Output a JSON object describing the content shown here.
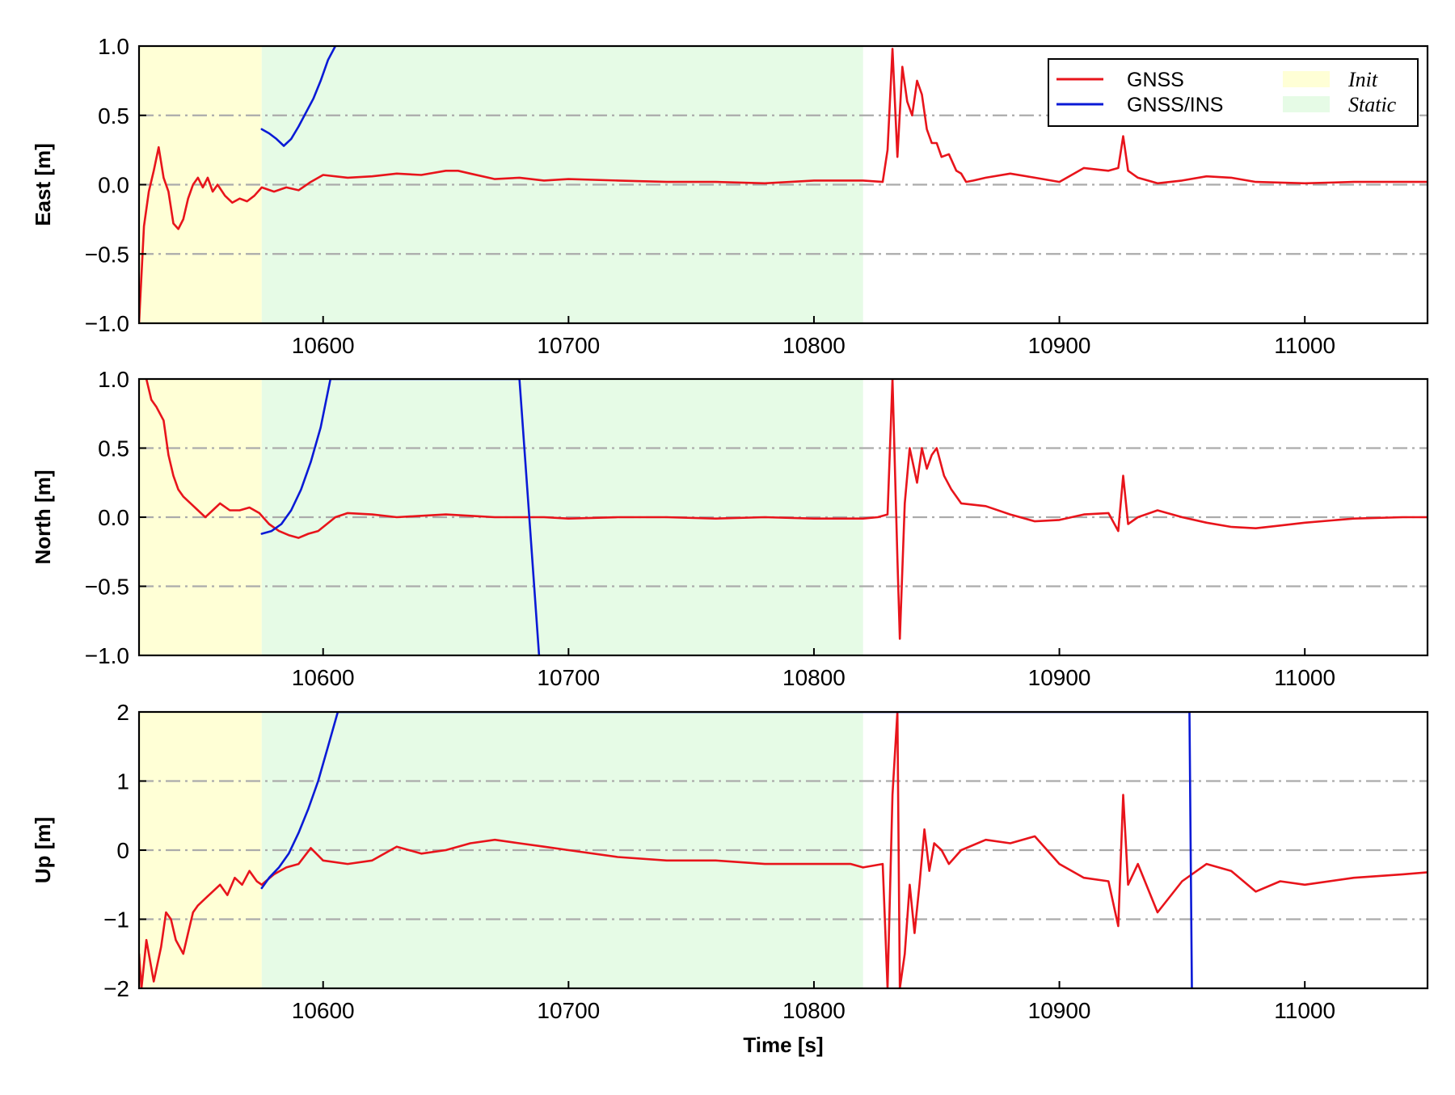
{
  "chart_data": [
    {
      "type": "line",
      "ylabel": "East [m]",
      "xlabel": "",
      "xlim": [
        10525,
        11050
      ],
      "ylim": [
        -1.0,
        1.0
      ],
      "x_ticks": [
        10600,
        10700,
        10800,
        10900,
        11000
      ],
      "x_tick_labels": [
        "10600",
        "10700",
        "10800",
        "10900",
        "11000"
      ],
      "y_ticks": [
        1.0,
        0.5,
        0.0,
        -0.5,
        -1.0
      ],
      "y_tick_labels": [
        "1.0",
        "0.5",
        "0.0",
        "−0.5",
        "−1.0"
      ],
      "gridlines": [
        0.5,
        0.0,
        -0.5
      ],
      "grid": "dash-dot horizontal",
      "shaded_regions": [
        {
          "label": "Init",
          "x": [
            10525,
            10575
          ],
          "color": "#ffffd6"
        },
        {
          "label": "Static",
          "x": [
            10575,
            10820
          ],
          "color": "#e6fbe6"
        }
      ],
      "series": [
        {
          "name": "GNSS",
          "color": "#e8141b",
          "x": [
            10525,
            10527,
            10529,
            10531,
            10533,
            10535,
            10537,
            10539,
            10541,
            10543,
            10545,
            10547,
            10549,
            10551,
            10553,
            10555,
            10557,
            10560,
            10563,
            10566,
            10569,
            10572,
            10575,
            10580,
            10585,
            10590,
            10595,
            10600,
            10610,
            10620,
            10630,
            10640,
            10650,
            10655,
            10660,
            10670,
            10680,
            10690,
            10700,
            10720,
            10740,
            10760,
            10780,
            10800,
            10820,
            10828,
            10830,
            10832,
            10834,
            10836,
            10838,
            10840,
            10842,
            10844,
            10846,
            10848,
            10850,
            10852,
            10855,
            10858,
            10860,
            10862,
            10865,
            10870,
            10880,
            10890,
            10900,
            10910,
            10920,
            10924,
            10926,
            10928,
            10932,
            10940,
            10950,
            10960,
            10970,
            10980,
            11000,
            11020,
            11040,
            11050
          ],
          "y": [
            -1.0,
            -0.3,
            -0.05,
            0.1,
            0.27,
            0.05,
            -0.05,
            -0.28,
            -0.32,
            -0.25,
            -0.1,
            0.0,
            0.05,
            -0.02,
            0.05,
            -0.05,
            0.0,
            -0.08,
            -0.13,
            -0.1,
            -0.12,
            -0.08,
            -0.02,
            -0.05,
            -0.02,
            -0.04,
            0.02,
            0.07,
            0.05,
            0.06,
            0.08,
            0.07,
            0.1,
            0.1,
            0.08,
            0.04,
            0.05,
            0.03,
            0.04,
            0.03,
            0.02,
            0.02,
            0.01,
            0.03,
            0.03,
            0.02,
            0.25,
            0.98,
            0.2,
            0.85,
            0.6,
            0.5,
            0.75,
            0.65,
            0.4,
            0.3,
            0.3,
            0.2,
            0.22,
            0.1,
            0.08,
            0.02,
            0.03,
            0.05,
            0.08,
            0.05,
            0.02,
            0.12,
            0.1,
            0.12,
            0.35,
            0.1,
            0.05,
            0.01,
            0.03,
            0.06,
            0.05,
            0.02,
            0.01,
            0.02,
            0.02,
            0.02
          ]
        },
        {
          "name": "GNSS/INS",
          "color": "#0a1ad6",
          "x": [
            10575,
            10578,
            10581,
            10584,
            10587,
            10590,
            10593,
            10596,
            10599,
            10602,
            10605
          ],
          "y": [
            0.4,
            0.37,
            0.33,
            0.28,
            0.33,
            0.42,
            0.52,
            0.62,
            0.75,
            0.9,
            1.0
          ]
        }
      ]
    },
    {
      "type": "line",
      "ylabel": "North [m]",
      "xlabel": "",
      "xlim": [
        10525,
        11050
      ],
      "ylim": [
        -1.0,
        1.0
      ],
      "x_ticks": [
        10600,
        10700,
        10800,
        10900,
        11000
      ],
      "x_tick_labels": [
        "10600",
        "10700",
        "10800",
        "10900",
        "11000"
      ],
      "y_ticks": [
        1.0,
        0.5,
        0.0,
        -0.5,
        -1.0
      ],
      "y_tick_labels": [
        "1.0",
        "0.5",
        "0.0",
        "−0.5",
        "−1.0"
      ],
      "gridlines": [
        0.5,
        0.0,
        -0.5
      ],
      "grid": "dash-dot horizontal",
      "shaded_regions": [
        {
          "label": "Init",
          "x": [
            10525,
            10575
          ],
          "color": "#ffffd6"
        },
        {
          "label": "Static",
          "x": [
            10575,
            10820
          ],
          "color": "#e6fbe6"
        }
      ],
      "series": [
        {
          "name": "GNSS",
          "color": "#e8141b",
          "x": [
            10528,
            10530,
            10532,
            10535,
            10537,
            10539,
            10541,
            10543,
            10546,
            10549,
            10552,
            10555,
            10558,
            10562,
            10566,
            10570,
            10574,
            10578,
            10582,
            10586,
            10590,
            10594,
            10598,
            10605,
            10610,
            10620,
            10630,
            10640,
            10650,
            10660,
            10670,
            10680,
            10690,
            10700,
            10720,
            10740,
            10760,
            10780,
            10800,
            10820,
            10826,
            10830,
            10832,
            10834,
            10835,
            10837,
            10839,
            10842,
            10844,
            10846,
            10848,
            10850,
            10853,
            10856,
            10860,
            10870,
            10880,
            10890,
            10900,
            10910,
            10920,
            10924,
            10926,
            10928,
            10932,
            10940,
            10950,
            10960,
            10970,
            10980,
            10990,
            11000,
            11020,
            11040,
            11050
          ],
          "y": [
            1.0,
            0.85,
            0.8,
            0.7,
            0.45,
            0.3,
            0.2,
            0.15,
            0.1,
            0.05,
            0.0,
            0.05,
            0.1,
            0.05,
            0.05,
            0.07,
            0.03,
            -0.05,
            -0.1,
            -0.13,
            -0.15,
            -0.12,
            -0.1,
            0.0,
            0.03,
            0.02,
            0.0,
            0.01,
            0.02,
            0.01,
            0.0,
            0.0,
            0.0,
            -0.01,
            0.0,
            0.0,
            -0.01,
            0.0,
            -0.01,
            -0.01,
            0.0,
            0.02,
            1.0,
            -0.3,
            -0.88,
            0.1,
            0.5,
            0.25,
            0.5,
            0.35,
            0.45,
            0.5,
            0.3,
            0.2,
            0.1,
            0.08,
            0.02,
            -0.03,
            -0.02,
            0.02,
            0.03,
            -0.1,
            0.3,
            -0.05,
            0.0,
            0.05,
            0.0,
            -0.04,
            -0.07,
            -0.08,
            -0.06,
            -0.04,
            -0.01,
            0.0,
            0.0
          ]
        },
        {
          "name": "GNSS/INS",
          "color": "#0a1ad6",
          "x": [
            10575,
            10579,
            10583,
            10587,
            10591,
            10595,
            10599,
            10603,
            10680,
            10684,
            10688
          ],
          "y": [
            -0.12,
            -0.1,
            -0.05,
            0.05,
            0.2,
            0.4,
            0.65,
            1.0,
            1.0,
            0.0,
            -1.0
          ]
        }
      ]
    },
    {
      "type": "line",
      "ylabel": "Up [m]",
      "xlabel": "Time [s]",
      "xlim": [
        10525,
        11050
      ],
      "ylim": [
        -2,
        2
      ],
      "x_ticks": [
        10600,
        10700,
        10800,
        10900,
        11000
      ],
      "x_tick_labels": [
        "10600",
        "10700",
        "10800",
        "10900",
        "11000"
      ],
      "y_ticks": [
        2,
        1,
        0,
        -1,
        -2
      ],
      "y_tick_labels": [
        "2",
        "1",
        "0",
        "−1",
        "−2"
      ],
      "gridlines": [
        1,
        0,
        -1
      ],
      "grid": "dash-dot horizontal",
      "shaded_regions": [
        {
          "label": "Init",
          "x": [
            10525,
            10575
          ],
          "color": "#ffffd6"
        },
        {
          "label": "Static",
          "x": [
            10575,
            10820
          ],
          "color": "#e6fbe6"
        }
      ],
      "series": [
        {
          "name": "GNSS",
          "color": "#e8141b",
          "x": [
            10525,
            10526,
            10528,
            10531,
            10534,
            10536,
            10538,
            10540,
            10543,
            10545,
            10547,
            10549,
            10552,
            10555,
            10558,
            10561,
            10564,
            10567,
            10570,
            10573,
            10575,
            10580,
            10585,
            10590,
            10595,
            10600,
            10610,
            10620,
            10630,
            10640,
            10650,
            10660,
            10670,
            10680,
            10690,
            10700,
            10720,
            10740,
            10760,
            10780,
            10800,
            10815,
            10820,
            10828,
            10830,
            10832,
            10834,
            10835,
            10837,
            10839,
            10841,
            10843,
            10845,
            10847,
            10849,
            10852,
            10855,
            10860,
            10870,
            10880,
            10890,
            10895,
            10900,
            10910,
            10920,
            10924,
            10926,
            10928,
            10932,
            10940,
            10950,
            10960,
            10970,
            10980,
            10990,
            11000,
            11020,
            11040,
            11050
          ],
          "y": [
            -1.5,
            -2.0,
            -1.3,
            -1.9,
            -1.4,
            -0.9,
            -1.0,
            -1.3,
            -1.5,
            -1.2,
            -0.9,
            -0.8,
            -0.7,
            -0.6,
            -0.5,
            -0.65,
            -0.4,
            -0.5,
            -0.3,
            -0.45,
            -0.5,
            -0.35,
            -0.25,
            -0.2,
            0.03,
            -0.15,
            -0.2,
            -0.15,
            0.05,
            -0.05,
            0.0,
            0.1,
            0.15,
            0.1,
            0.05,
            0.0,
            -0.1,
            -0.15,
            -0.15,
            -0.2,
            -0.2,
            -0.2,
            -0.25,
            -0.2,
            -2.0,
            0.8,
            2.0,
            -2.0,
            -1.5,
            -0.5,
            -1.2,
            -0.5,
            0.3,
            -0.3,
            0.1,
            0.0,
            -0.2,
            0.0,
            0.15,
            0.1,
            0.2,
            0.0,
            -0.2,
            -0.4,
            -0.45,
            -1.1,
            0.8,
            -0.5,
            -0.2,
            -0.9,
            -0.45,
            -0.2,
            -0.3,
            -0.6,
            -0.45,
            -0.5,
            -0.4,
            -0.35,
            -0.32
          ]
        },
        {
          "name": "GNSS/INS",
          "color": "#0a1ad6",
          "x": [
            10575,
            10578,
            10582,
            10586,
            10590,
            10594,
            10598,
            10602,
            10606,
            10953,
            10954
          ],
          "y": [
            -0.55,
            -0.4,
            -0.25,
            -0.05,
            0.25,
            0.6,
            1.0,
            1.5,
            2.0,
            2.0,
            -2.0
          ]
        }
      ]
    }
  ],
  "legend": {
    "placement": "top-right",
    "entries": [
      {
        "label": "GNSS",
        "kind": "line",
        "color": "#e8141b"
      },
      {
        "label": "GNSS/INS",
        "kind": "line",
        "color": "#0a1ad6"
      },
      {
        "label": "Init",
        "kind": "patch",
        "color": "#ffffd6"
      },
      {
        "label": "Static",
        "kind": "patch",
        "color": "#e6fbe6"
      }
    ]
  }
}
